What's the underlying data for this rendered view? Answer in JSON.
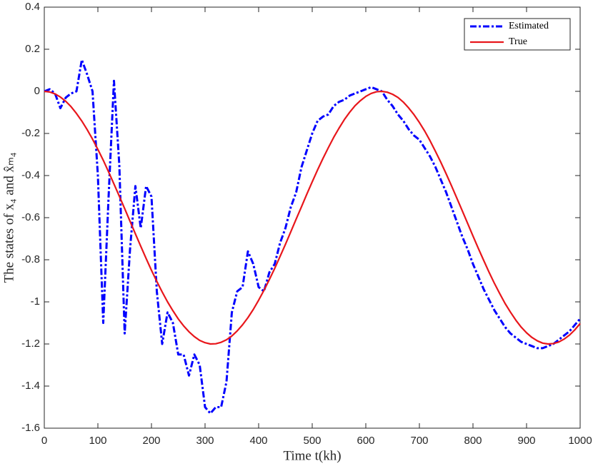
{
  "chart_data": {
    "type": "line",
    "xlabel": "Time t(kh)",
    "ylabel": "The states of x₄ and x̂ₘ₄",
    "x": [
      0,
      10,
      20,
      30,
      40,
      50,
      60,
      70,
      80,
      90,
      100,
      110,
      120,
      130,
      140,
      150,
      160,
      170,
      180,
      190,
      200,
      210,
      220,
      230,
      240,
      250,
      260,
      270,
      280,
      290,
      300,
      310,
      320,
      330,
      340,
      350,
      360,
      370,
      380,
      390,
      400,
      410,
      420,
      430,
      440,
      450,
      460,
      470,
      480,
      490,
      500,
      510,
      520,
      530,
      540,
      550,
      560,
      570,
      580,
      590,
      600,
      610,
      620,
      630,
      640,
      650,
      660,
      670,
      680,
      690,
      700,
      710,
      720,
      730,
      740,
      750,
      760,
      770,
      780,
      790,
      800,
      810,
      820,
      830,
      840,
      850,
      860,
      870,
      880,
      890,
      900,
      910,
      920,
      930,
      940,
      950,
      960,
      970,
      980,
      990,
      1000
    ],
    "series": [
      {
        "name": "Estimated",
        "color": "#0000ff",
        "dash": true,
        "values": [
          0,
          0.01,
          -0.01,
          -0.08,
          -0.03,
          -0.01,
          0,
          0.15,
          0.08,
          0,
          -0.4,
          -1.1,
          -0.5,
          0.05,
          -0.35,
          -1.15,
          -0.75,
          -0.45,
          -0.65,
          -0.45,
          -0.5,
          -0.95,
          -1.2,
          -1.05,
          -1.1,
          -1.25,
          -1.25,
          -1.35,
          -1.25,
          -1.3,
          -1.5,
          -1.53,
          -1.5,
          -1.5,
          -1.38,
          -1.05,
          -0.95,
          -0.93,
          -0.76,
          -0.82,
          -0.93,
          -0.95,
          -0.86,
          -0.82,
          -0.72,
          -0.65,
          -0.55,
          -0.48,
          -0.36,
          -0.28,
          -0.2,
          -0.14,
          -0.12,
          -0.11,
          -0.07,
          -0.05,
          -0.04,
          -0.02,
          -0.01,
          0,
          0.01,
          0.02,
          0.01,
          0,
          -0.04,
          -0.07,
          -0.11,
          -0.14,
          -0.18,
          -0.21,
          -0.23,
          -0.27,
          -0.31,
          -0.36,
          -0.42,
          -0.48,
          -0.55,
          -0.62,
          -0.69,
          -0.75,
          -0.82,
          -0.88,
          -0.94,
          -0.99,
          -1.04,
          -1.08,
          -1.12,
          -1.15,
          -1.17,
          -1.19,
          -1.2,
          -1.21,
          -1.22,
          -1.22,
          -1.21,
          -1.2,
          -1.18,
          -1.16,
          -1.14,
          -1.11,
          -1.08
        ]
      },
      {
        "name": "True",
        "color": "#e8161b",
        "dash": false,
        "values": [
          0,
          -0.003,
          -0.012,
          -0.027,
          -0.047,
          -0.073,
          -0.105,
          -0.141,
          -0.182,
          -0.227,
          -0.276,
          -0.327,
          -0.383,
          -0.44,
          -0.498,
          -0.557,
          -0.617,
          -0.677,
          -0.736,
          -0.794,
          -0.85,
          -0.903,
          -0.953,
          -1.0,
          -1.042,
          -1.081,
          -1.114,
          -1.142,
          -1.165,
          -1.183,
          -1.194,
          -1.2,
          -1.199,
          -1.192,
          -1.18,
          -1.162,
          -1.138,
          -1.109,
          -1.075,
          -1.036,
          -0.992,
          -0.945,
          -0.894,
          -0.841,
          -0.784,
          -0.727,
          -0.667,
          -0.607,
          -0.548,
          -0.488,
          -0.43,
          -0.373,
          -0.319,
          -0.268,
          -0.219,
          -0.175,
          -0.134,
          -0.099,
          -0.068,
          -0.044,
          -0.024,
          -0.01,
          -0.002,
          0,
          -0.004,
          -0.014,
          -0.029,
          -0.051,
          -0.079,
          -0.111,
          -0.148,
          -0.189,
          -0.235,
          -0.285,
          -0.337,
          -0.392,
          -0.449,
          -0.508,
          -0.567,
          -0.627,
          -0.687,
          -0.746,
          -0.803,
          -0.859,
          -0.912,
          -0.961,
          -1.008,
          -1.049,
          -1.087,
          -1.12,
          -1.147,
          -1.169,
          -1.185,
          -1.196,
          -1.2,
          -1.198,
          -1.191,
          -1.177,
          -1.158,
          -1.133,
          -1.103
        ]
      }
    ],
    "xlim": [
      0,
      1000
    ],
    "xticks": [
      0,
      100,
      200,
      300,
      400,
      500,
      600,
      700,
      800,
      900,
      1000
    ],
    "ylim": [
      -1.6,
      0.4
    ],
    "yticks": [
      -1.6,
      -1.4,
      -1.2,
      -1,
      -0.8,
      -0.6,
      -0.4,
      -0.2,
      0,
      0.2,
      0.4
    ],
    "grid": false,
    "legend": "upper right"
  }
}
